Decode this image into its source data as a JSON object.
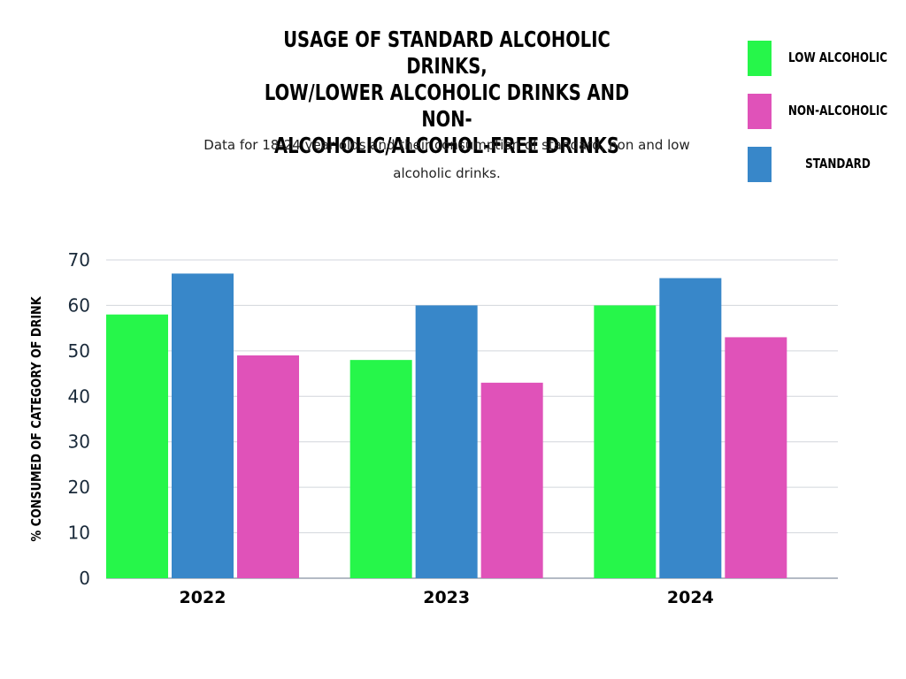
{
  "chart_data": {
    "type": "bar",
    "title": "USAGE OF STANDARD ALCOHOLIC DRINKS, LOW/LOWER ALCOHOLIC DRINKS AND NON-ALCOHOLIC/ALCOHOL-FREE DRINKS",
    "title_lines": [
      "USAGE OF STANDARD ALCOHOLIC DRINKS,",
      "LOW/LOWER ALCOHOLIC DRINKS AND NON-",
      "ALCOHOLIC/ALCOHOL-FREE DRINKS"
    ],
    "subtitle_lines": [
      "Data for 18-24 year olds and their consumption of standard, non and low",
      "alcoholic drinks."
    ],
    "xlabel": "",
    "ylabel": "% CONSUMED OF CATEGORY OF DRINK",
    "ylim": [
      0,
      70
    ],
    "yticks": [
      0,
      10,
      20,
      30,
      40,
      50,
      60,
      70
    ],
    "grid": true,
    "legend_position": "top-right",
    "categories": [
      "2022",
      "2023",
      "2024"
    ],
    "series": [
      {
        "name": "LOW ALCOHOLIC",
        "color": "#26f64a",
        "values": [
          58,
          48,
          60
        ]
      },
      {
        "name": "STANDARD",
        "color": "#3887c9",
        "values": [
          67,
          60,
          66
        ]
      },
      {
        "name": "NON-ALCOHOLIC",
        "color": "#e052b9",
        "values": [
          49,
          43,
          53
        ]
      }
    ],
    "legend_order": [
      0,
      2,
      1
    ]
  }
}
